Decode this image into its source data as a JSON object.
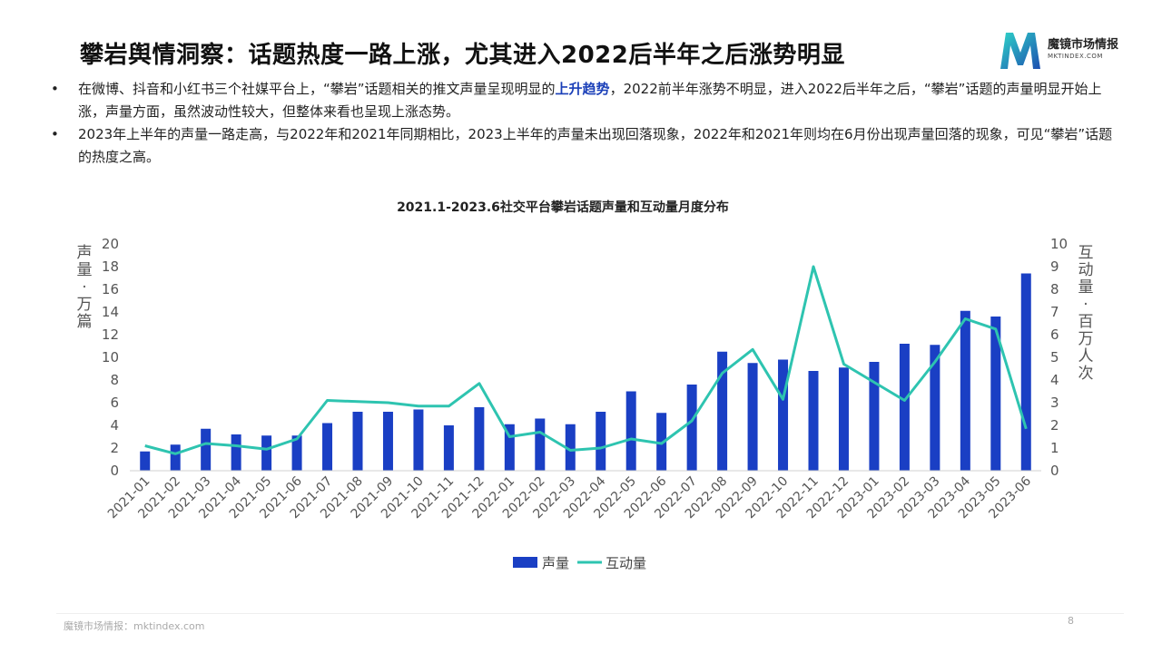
{
  "page": {
    "title": "攀岩舆情洞察：话题热度一路上涨，尤其进入2022后半年之后涨势明显",
    "logo_brand": "魔镜市场情报",
    "logo_url": "MKTINDEX.COM",
    "footer": "魔镜市场情报：mktindex.com",
    "page_number": "8",
    "bullet_marker": "•",
    "bullets": [
      {
        "pre": "在微博、抖音和小红书三个社媒平台上，“攀岩”话题相关的推文声量呈现明显的",
        "highlight": "上升趋势",
        "post": "，2022前半年涨势不明显，进入2022后半年之后，“攀岩”话题的声量明显开始上涨，声量方面，虽然波动性较大，但整体来看也呈现上涨态势。"
      },
      {
        "pre": "2023年上半年的声量一路走高，与2022年和2021年同期相比，2023上半年的声量未出现回落现象，2022年和2021年则均在6月份出现声量回落的现象，可见“攀岩”话题的热度之高。",
        "highlight": "",
        "post": ""
      }
    ]
  },
  "colors": {
    "bar": "#1a3fc4",
    "line": "#2ec4b0",
    "highlight": "#1a3fb8"
  },
  "chart_data": {
    "type": "bar",
    "title": "2021.1-2023.6社交平台攀岩话题声量和互动量月度分布",
    "ylabel_left": "声量：万篇",
    "ylabel_right": "互动量：百万人次",
    "ylim_left": [
      0,
      20
    ],
    "ylim_right": [
      0,
      10
    ],
    "yticks_left": [
      0,
      2,
      4,
      6,
      8,
      10,
      12,
      14,
      16,
      18,
      20
    ],
    "yticks_right": [
      0,
      1,
      2,
      3,
      4,
      5,
      6,
      7,
      8,
      9,
      10
    ],
    "grid": false,
    "legend_position": "bottom",
    "categories": [
      "2021-01",
      "2021-02",
      "2021-03",
      "2021-04",
      "2021-05",
      "2021-06",
      "2021-07",
      "2021-08",
      "2021-09",
      "2021-10",
      "2021-11",
      "2021-12",
      "2022-01",
      "2022-02",
      "2022-03",
      "2022-04",
      "2022-05",
      "2022-06",
      "2022-07",
      "2022-08",
      "2022-09",
      "2022-10",
      "2022-11",
      "2022-12",
      "2023-01",
      "2023-02",
      "2023-03",
      "2023-04",
      "2023-05",
      "2023-06"
    ],
    "series": [
      {
        "name": "声量",
        "type": "bar",
        "axis": "left",
        "values": [
          1.7,
          2.3,
          3.7,
          3.2,
          3.1,
          3.1,
          4.2,
          5.2,
          5.2,
          5.4,
          4.0,
          5.6,
          4.1,
          4.6,
          4.1,
          5.2,
          7.0,
          5.1,
          7.6,
          10.5,
          9.5,
          9.8,
          8.8,
          9.1,
          9.6,
          11.2,
          11.1,
          14.1,
          13.6,
          17.4
        ]
      },
      {
        "name": "互动量",
        "type": "line",
        "axis": "right",
        "values": [
          1.1,
          0.75,
          1.2,
          1.1,
          0.95,
          1.4,
          3.1,
          3.05,
          3.0,
          2.85,
          2.85,
          3.85,
          1.5,
          1.7,
          0.9,
          1.0,
          1.4,
          1.2,
          2.2,
          4.3,
          5.35,
          3.15,
          9.0,
          4.7,
          3.9,
          3.1,
          4.8,
          6.7,
          6.25,
          1.85
        ]
      }
    ]
  }
}
